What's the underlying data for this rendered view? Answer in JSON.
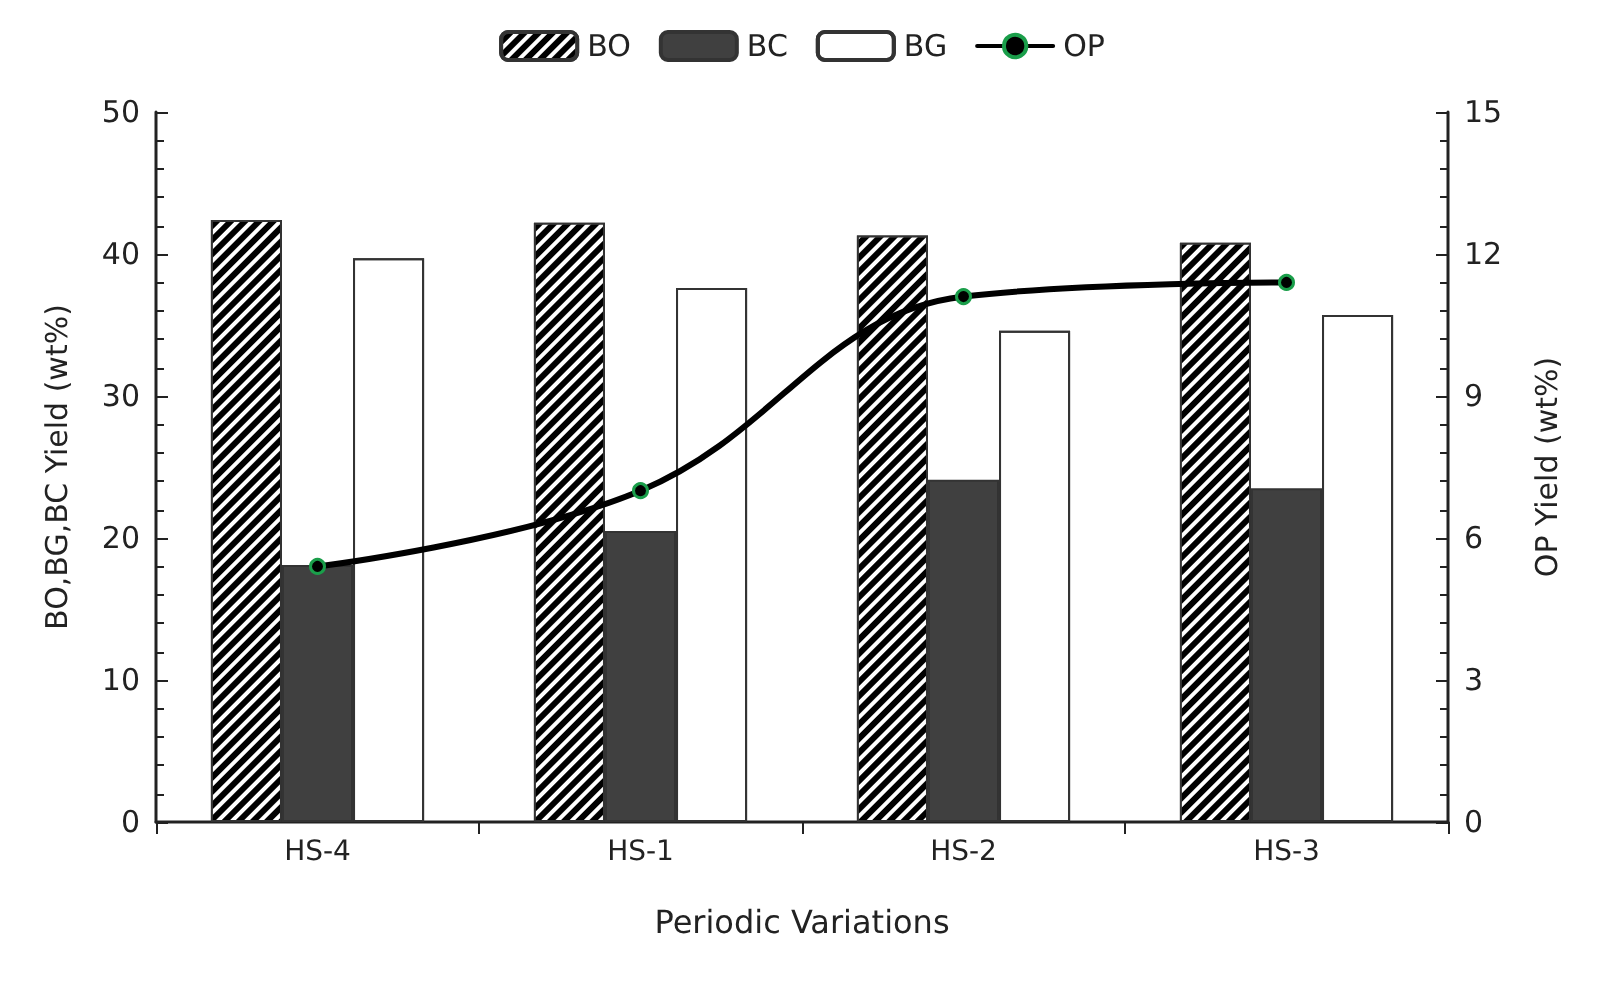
{
  "chart_data": {
    "type": "bar",
    "xlabel": "Periodic Variations",
    "ylabel": "BO,BG,BC Yield (wt%)",
    "y2label": "OP Yield (wt%)",
    "categories": [
      "HS-4",
      "HS-1",
      "HS-2",
      "HS-3"
    ],
    "series": [
      {
        "name": "BO",
        "color": "#000000",
        "values": [
          42.4,
          42.2,
          41.3,
          40.8
        ]
      },
      {
        "name": "BC",
        "color": "#404040",
        "values": [
          18.1,
          20.5,
          24.1,
          23.5
        ]
      },
      {
        "name": "BG",
        "color": "#ffffff",
        "values": [
          39.7,
          37.6,
          34.6,
          35.7
        ]
      },
      {
        "name": "OP",
        "type": "line",
        "axis": "y2",
        "color": "#000000",
        "values": [
          5.4,
          7.0,
          11.1,
          11.4
        ]
      }
    ],
    "ylim": [
      0,
      50
    ],
    "yticks": [
      0,
      10,
      20,
      30,
      40,
      50
    ],
    "y2lim": [
      0,
      15
    ],
    "y2ticks": [
      0,
      3,
      6,
      9,
      12,
      15
    ],
    "grid": false,
    "legend": "top",
    "marker": "circle",
    "line_style": "solid"
  }
}
